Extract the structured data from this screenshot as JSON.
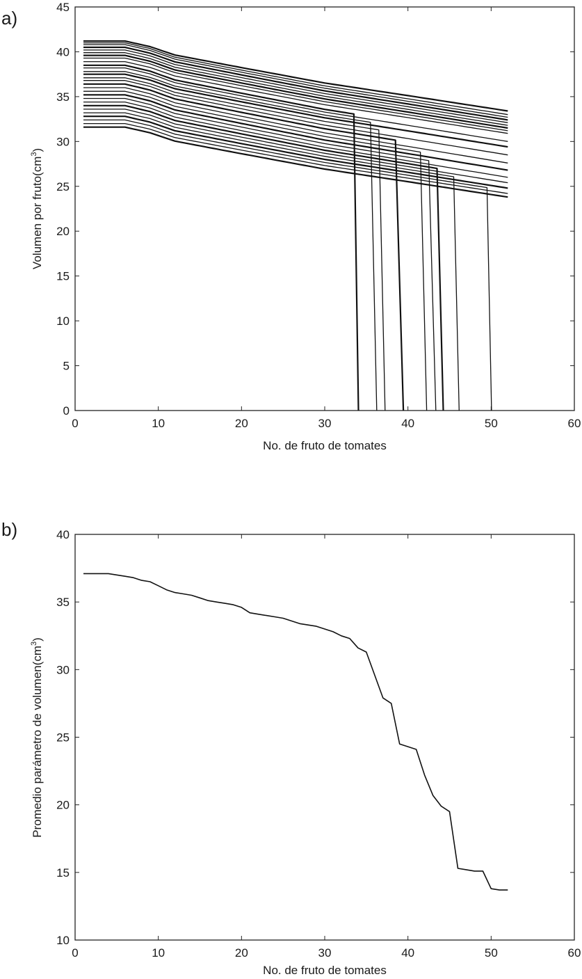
{
  "chart_data": [
    {
      "panel_label": "a)",
      "type": "line",
      "title": "",
      "xlabel": "No. de fruto de tomates",
      "ylabel": "Volumen por fruto(cm",
      "ylabel_sup": "3",
      "ylabel_end": ")",
      "xlim": [
        0,
        60
      ],
      "ylim": [
        0,
        45
      ],
      "xticks": [
        0,
        10,
        20,
        30,
        40,
        50,
        60
      ],
      "yticks": [
        0,
        5,
        10,
        15,
        20,
        25,
        30,
        35,
        40,
        45
      ],
      "grid": false,
      "legend": "none",
      "series_color": "#111111",
      "x_start": 1,
      "x_end": 52,
      "series": [
        {
          "start": 41.2,
          "end": 33.4
        },
        {
          "start": 41.0,
          "end": 33.0
        },
        {
          "start": 40.8,
          "end": 32.7
        },
        {
          "start": 40.5,
          "end": 32.4
        },
        {
          "start": 40.2,
          "end": 32.1
        },
        {
          "start": 39.9,
          "end": 31.8
        },
        {
          "start": 39.6,
          "end": 31.5
        },
        {
          "start": 39.3,
          "end": 31.2
        },
        {
          "start": 38.9,
          "end": 30.9
        },
        {
          "start": 38.5,
          "end": 30.3,
          "drop_at": 33.5
        },
        {
          "start": 38.2,
          "end": 30.0
        },
        {
          "start": 37.8,
          "end": 29.7,
          "drop_at": 35.7
        },
        {
          "start": 37.5,
          "end": 29.4
        },
        {
          "start": 37.1,
          "end": 29.0,
          "drop_at": 36.7
        },
        {
          "start": 36.8,
          "end": 28.5
        },
        {
          "start": 36.4,
          "end": 28.1,
          "drop_at": 38.9
        },
        {
          "start": 36.0,
          "end": 27.6
        },
        {
          "start": 35.6,
          "end": 27.2,
          "drop_at": 41.7
        },
        {
          "start": 35.2,
          "end": 26.8
        },
        {
          "start": 34.8,
          "end": 26.4,
          "drop_at": 42.8
        },
        {
          "start": 34.4,
          "end": 26.0
        },
        {
          "start": 34.0,
          "end": 25.7,
          "drop_at": 43.7
        },
        {
          "start": 33.6,
          "end": 25.4
        },
        {
          "start": 33.2,
          "end": 25.1,
          "drop_at": 45.6
        },
        {
          "start": 32.8,
          "end": 24.8
        },
        {
          "start": 32.4,
          "end": 24.5,
          "drop_at": 49.5
        },
        {
          "start": 32.0,
          "end": 24.2
        },
        {
          "start": 31.6,
          "end": 23.8
        }
      ]
    },
    {
      "panel_label": "b)",
      "type": "line",
      "title": "",
      "xlabel": "No. de fruto de tomates",
      "ylabel": "Promedio parámetro de volumen(cm",
      "ylabel_sup": "3",
      "ylabel_end": ")",
      "xlim": [
        0,
        60
      ],
      "ylim": [
        10,
        40
      ],
      "xticks": [
        0,
        10,
        20,
        30,
        40,
        50,
        60
      ],
      "yticks": [
        10,
        15,
        20,
        25,
        30,
        35,
        40
      ],
      "grid": false,
      "legend": "none",
      "series_color": "#111111",
      "x": [
        1,
        2,
        3,
        4,
        5,
        6,
        7,
        8,
        9,
        10,
        11,
        12,
        13,
        14,
        15,
        16,
        17,
        18,
        19,
        20,
        21,
        22,
        23,
        24,
        25,
        26,
        27,
        28,
        29,
        30,
        31,
        32,
        33,
        34,
        35,
        36,
        37,
        38,
        39,
        40,
        41,
        42,
        43,
        44,
        45,
        46,
        47,
        48,
        49,
        50,
        51,
        52
      ],
      "series": [
        {
          "values": [
            37.1,
            37.1,
            37.1,
            37.1,
            37.0,
            36.9,
            36.8,
            36.6,
            36.5,
            36.2,
            35.9,
            35.7,
            35.6,
            35.5,
            35.3,
            35.1,
            35.0,
            34.9,
            34.8,
            34.6,
            34.2,
            34.1,
            34.0,
            33.9,
            33.8,
            33.6,
            33.4,
            33.3,
            33.2,
            33.0,
            32.8,
            32.5,
            32.3,
            31.6,
            31.3,
            29.6,
            27.9,
            27.5,
            24.5,
            24.3,
            24.1,
            22.2,
            20.7,
            19.9,
            19.5,
            15.3,
            15.2,
            15.1,
            15.1,
            13.8,
            13.7,
            13.7
          ]
        }
      ]
    }
  ]
}
